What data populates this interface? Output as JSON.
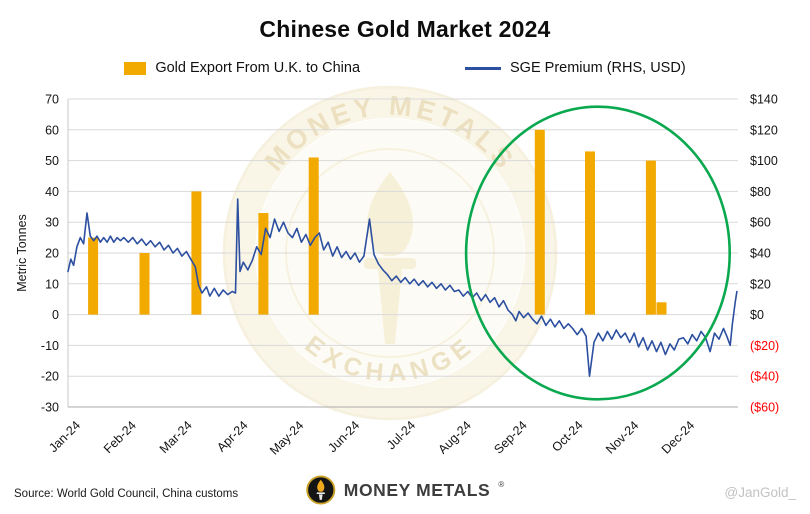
{
  "chart": {
    "title": "Chinese Gold Market 2024",
    "legend": [
      {
        "label": "Gold Export From U.K. to China",
        "type": "bar",
        "color": "#F2A900"
      },
      {
        "label": "SGE Premium (RHS, USD)",
        "type": "line",
        "color": "#2C4FA0"
      }
    ]
  },
  "chart_data": {
    "type": "combo",
    "title": "Chinese Gold Market 2024",
    "grid_color": "#D9D9D9",
    "negative_tick_color": "#FF0000",
    "x_axis": {
      "labels": [
        "Jan-24",
        "Feb-24",
        "Mar-24",
        "Apr-24",
        "May-24",
        "Jun-24",
        "Jul-24",
        "Aug-24",
        "Sep-24",
        "Oct-24",
        "Nov-24",
        "Dec-24"
      ]
    },
    "left_axis": {
      "title": "Metric Tonnes",
      "min": -30,
      "max": 70,
      "ticks": [
        70,
        60,
        50,
        40,
        30,
        20,
        10,
        0,
        -10,
        -20,
        -30
      ]
    },
    "right_axis": {
      "min": -60,
      "max": 140,
      "tick_labels": [
        "$140",
        "$120",
        "$100",
        "$80",
        "$60",
        "$40",
        "$20",
        "$0",
        "($20)",
        "($40)",
        "($60)"
      ],
      "tick_values": [
        140,
        120,
        100,
        80,
        60,
        40,
        20,
        0,
        -20,
        -40,
        -60
      ]
    },
    "bars": {
      "name": "Gold Export From U.K. to China",
      "unit": "Metric Tonnes",
      "color": "#F2A900",
      "points": [
        {
          "month": 0.45,
          "tonnes": 25
        },
        {
          "month": 1.37,
          "tonnes": 20
        },
        {
          "month": 2.3,
          "tonnes": 40
        },
        {
          "month": 3.5,
          "tonnes": 33
        },
        {
          "month": 4.4,
          "tonnes": 51
        },
        {
          "month": 8.45,
          "tonnes": 60
        },
        {
          "month": 9.35,
          "tonnes": 53
        },
        {
          "month": 10.44,
          "tonnes": 50
        },
        {
          "month": 10.63,
          "tonnes": 4
        }
      ]
    },
    "line": {
      "name": "SGE Premium (RHS, USD)",
      "unit": "USD",
      "color": "#2C4FA0",
      "points": [
        [
          0.0,
          28
        ],
        [
          0.05,
          36
        ],
        [
          0.1,
          32
        ],
        [
          0.16,
          44
        ],
        [
          0.22,
          50
        ],
        [
          0.28,
          46
        ],
        [
          0.34,
          66
        ],
        [
          0.4,
          51
        ],
        [
          0.46,
          48
        ],
        [
          0.52,
          51
        ],
        [
          0.58,
          47
        ],
        [
          0.64,
          50
        ],
        [
          0.7,
          47
        ],
        [
          0.76,
          51
        ],
        [
          0.82,
          47
        ],
        [
          0.88,
          50
        ],
        [
          0.94,
          48
        ],
        [
          1.0,
          50
        ],
        [
          1.08,
          47
        ],
        [
          1.16,
          50
        ],
        [
          1.24,
          46
        ],
        [
          1.32,
          49
        ],
        [
          1.4,
          45
        ],
        [
          1.48,
          48
        ],
        [
          1.56,
          44
        ],
        [
          1.64,
          47
        ],
        [
          1.72,
          42
        ],
        [
          1.8,
          45
        ],
        [
          1.88,
          40
        ],
        [
          1.96,
          43
        ],
        [
          2.04,
          38
        ],
        [
          2.12,
          41
        ],
        [
          2.2,
          36
        ],
        [
          2.28,
          31
        ],
        [
          2.34,
          19
        ],
        [
          2.4,
          14
        ],
        [
          2.48,
          18
        ],
        [
          2.54,
          12
        ],
        [
          2.62,
          17
        ],
        [
          2.7,
          12
        ],
        [
          2.78,
          16
        ],
        [
          2.86,
          13
        ],
        [
          2.94,
          15
        ],
        [
          3.0,
          14
        ],
        [
          3.04,
          75
        ],
        [
          3.08,
          28
        ],
        [
          3.14,
          34
        ],
        [
          3.22,
          29
        ],
        [
          3.3,
          35
        ],
        [
          3.38,
          44
        ],
        [
          3.46,
          39
        ],
        [
          3.54,
          56
        ],
        [
          3.62,
          50
        ],
        [
          3.7,
          62
        ],
        [
          3.78,
          54
        ],
        [
          3.86,
          60
        ],
        [
          3.94,
          53
        ],
        [
          4.02,
          50
        ],
        [
          4.1,
          56
        ],
        [
          4.18,
          47
        ],
        [
          4.26,
          52
        ],
        [
          4.34,
          45
        ],
        [
          4.42,
          50
        ],
        [
          4.5,
          53
        ],
        [
          4.58,
          42
        ],
        [
          4.66,
          47
        ],
        [
          4.74,
          38
        ],
        [
          4.82,
          44
        ],
        [
          4.9,
          37
        ],
        [
          4.98,
          41
        ],
        [
          5.06,
          36
        ],
        [
          5.14,
          40
        ],
        [
          5.22,
          34
        ],
        [
          5.3,
          38
        ],
        [
          5.4,
          62
        ],
        [
          5.48,
          39
        ],
        [
          5.56,
          33
        ],
        [
          5.64,
          29
        ],
        [
          5.72,
          26
        ],
        [
          5.8,
          22
        ],
        [
          5.88,
          25
        ],
        [
          5.96,
          21
        ],
        [
          6.04,
          24
        ],
        [
          6.12,
          20
        ],
        [
          6.2,
          23
        ],
        [
          6.28,
          19
        ],
        [
          6.36,
          22
        ],
        [
          6.44,
          18
        ],
        [
          6.52,
          21
        ],
        [
          6.6,
          17
        ],
        [
          6.68,
          20
        ],
        [
          6.76,
          16
        ],
        [
          6.84,
          19
        ],
        [
          6.92,
          15
        ],
        [
          7.0,
          16
        ],
        [
          7.08,
          12
        ],
        [
          7.16,
          15
        ],
        [
          7.24,
          11
        ],
        [
          7.32,
          14
        ],
        [
          7.4,
          9
        ],
        [
          7.48,
          13
        ],
        [
          7.56,
          8
        ],
        [
          7.64,
          11
        ],
        [
          7.72,
          5
        ],
        [
          7.8,
          9
        ],
        [
          7.88,
          3
        ],
        [
          7.96,
          0
        ],
        [
          8.02,
          -4
        ],
        [
          8.08,
          2
        ],
        [
          8.16,
          -2
        ],
        [
          8.24,
          1
        ],
        [
          8.32,
          -3
        ],
        [
          8.4,
          -6
        ],
        [
          8.48,
          -1
        ],
        [
          8.56,
          -7
        ],
        [
          8.64,
          -3
        ],
        [
          8.72,
          -8
        ],
        [
          8.8,
          -4
        ],
        [
          8.88,
          -9
        ],
        [
          8.96,
          -6
        ],
        [
          9.04,
          -9
        ],
        [
          9.12,
          -13
        ],
        [
          9.2,
          -9
        ],
        [
          9.28,
          -14
        ],
        [
          9.34,
          -40
        ],
        [
          9.42,
          -18
        ],
        [
          9.5,
          -12
        ],
        [
          9.58,
          -17
        ],
        [
          9.66,
          -11
        ],
        [
          9.74,
          -16
        ],
        [
          9.82,
          -10
        ],
        [
          9.9,
          -15
        ],
        [
          9.98,
          -12
        ],
        [
          10.06,
          -18
        ],
        [
          10.14,
          -12
        ],
        [
          10.22,
          -21
        ],
        [
          10.3,
          -15
        ],
        [
          10.38,
          -23
        ],
        [
          10.46,
          -17
        ],
        [
          10.54,
          -24
        ],
        [
          10.62,
          -18
        ],
        [
          10.7,
          -26
        ],
        [
          10.78,
          -19
        ],
        [
          10.86,
          -23
        ],
        [
          10.94,
          -16
        ],
        [
          11.02,
          -15
        ],
        [
          11.1,
          -19
        ],
        [
          11.18,
          -13
        ],
        [
          11.26,
          -17
        ],
        [
          11.34,
          -11
        ],
        [
          11.42,
          -15
        ],
        [
          11.5,
          -24
        ],
        [
          11.58,
          -12
        ],
        [
          11.66,
          -16
        ],
        [
          11.74,
          -9
        ],
        [
          11.8,
          -14
        ],
        [
          11.86,
          -20
        ],
        [
          11.9,
          -6
        ],
        [
          11.95,
          8
        ],
        [
          11.98,
          15
        ]
      ]
    },
    "annotation": {
      "shape": "ellipse",
      "color": "#0AA84F",
      "stroke_width": 2.6,
      "center_month": 9.49,
      "center_left_value": 20,
      "rx_months": 2.36,
      "ry_left_values": 47.5
    }
  },
  "watermark": {
    "line1": "MONEY METALS",
    "line2": "EXCHANGE"
  },
  "footer": {
    "source": "Source: World Gold Council, China customs",
    "brand": "MONEY METALS",
    "registered": "®",
    "handle": "@JanGold_"
  }
}
